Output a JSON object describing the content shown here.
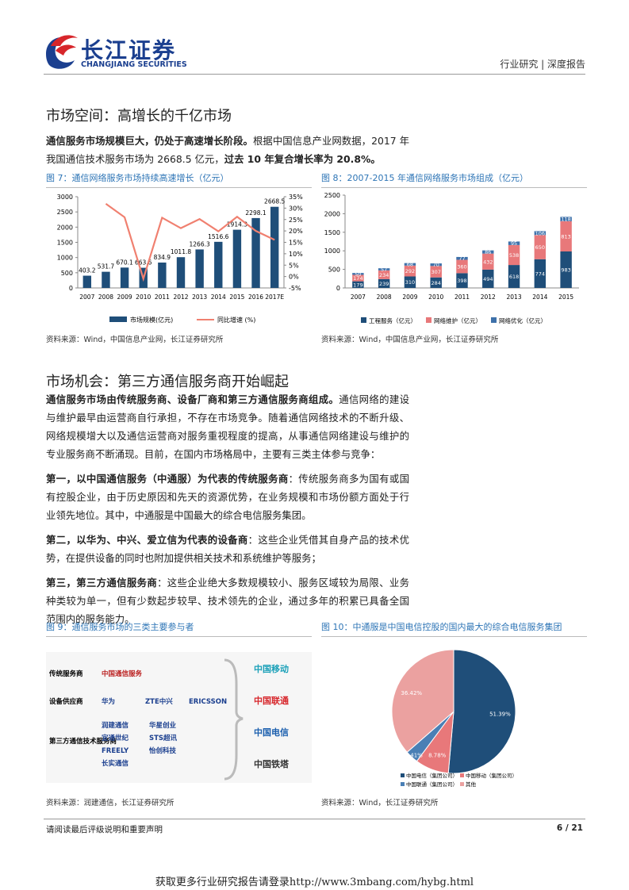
{
  "header": {
    "logo_cn": "长江证券",
    "logo_en": "CHANGJIANG SECURITIES",
    "right": "行业研究 | 深度报告"
  },
  "sections": [
    {
      "title": "市场空间：高增长的千亿市场",
      "paragraphs": [
        {
          "runs": [
            {
              "text": "通信服务市场规模巨大，仍处于高速增长阶段。",
              "bold": true
            },
            {
              "text": "根据中国信息产业网数据，2017 年我国通信技术服务市场为 2668.5 亿元，",
              "bold": false
            },
            {
              "text": "过去 10 年复合增长率为 20.8%。",
              "bold": true
            }
          ]
        }
      ]
    },
    {
      "title": "市场机会：第三方通信服务商开始崛起",
      "paragraphs": [
        {
          "runs": [
            {
              "text": "通信服务市场由传统服务商、设备厂商和第三方通信服务商组成。",
              "bold": true
            },
            {
              "text": "通信网络的建设与维护最早由运营商自行承担，不存在市场竞争。随着通信网络技术的不断升级、网络规模增大以及通信运营商对服务重视程度的提高，从事通信网络建设与维护的专业服务商不断涌现。目前，在国内市场格局中，主要有三类主体参与竞争：",
              "bold": false
            }
          ]
        },
        {
          "runs": [
            {
              "text": "第一，以中国通信服务（中通服）为代表的传统服务商",
              "bold": true
            },
            {
              "text": "：传统服务商多为国有或国有控股企业，由于历史原因和先天的资源优势，在业务规模和市场份额方面处于行业领先地位。其中，中通服是中国最大的综合电信服务集团。",
              "bold": false
            }
          ]
        },
        {
          "runs": [
            {
              "text": "第二，以华为、中兴、爱立信为代表的设备商",
              "bold": true
            },
            {
              "text": "：这些企业凭借其自身产品的技术优势，在提供设备的同时也附加提供相关技术和系统维护等服务；",
              "bold": false
            }
          ]
        },
        {
          "runs": [
            {
              "text": "第三，第三方通信服务商",
              "bold": true
            },
            {
              "text": "：这些企业绝大多数规模较小、服务区域较为局限、业务种类较为单一，但有少数起步较早、技术领先的企业，通过多年的积累已具备全国范围内的服务能力。",
              "bold": false
            }
          ]
        }
      ]
    }
  ],
  "figures": [
    {
      "title": "图 7：通信网络服务市场持续高速增长（亿元）",
      "source": "资料来源：Wind，中国信息产业网，长江证券研究所",
      "chart": {
        "type": "bar_line",
        "categories": [
          "2007",
          "2008",
          "2009",
          "2010",
          "2011",
          "2012",
          "2013",
          "2014",
          "2015",
          "2016",
          "2017E"
        ],
        "series": [
          {
            "name": "市场规模(亿元)",
            "color": "#1f4e79",
            "values": [
              403.2,
              531.7,
              670.1,
              663.6,
              834.9,
              1011.8,
              1266.3,
              1516.6,
              1914.3,
              2298.1,
              2668.5
            ]
          },
          {
            "name": "同比增速 (%)",
            "color": "#f08070",
            "axis": "y2",
            "values": [
              null,
              31.9,
              26.0,
              -1.0,
              25.8,
              21.2,
              25.2,
              19.8,
              26.2,
              20.0,
              16.1
            ]
          }
        ],
        "ylim": [
          0,
          3000
        ],
        "yticks": [
          0,
          500,
          1000,
          1500,
          2000,
          2500,
          3000
        ],
        "y2lim": [
          -5,
          35
        ],
        "y2ticks": [
          {
            "value": -5,
            "label": "-5%"
          },
          {
            "value": 0,
            "label": "0%"
          },
          {
            "value": 5,
            "label": "5%"
          },
          {
            "value": 10,
            "label": "10%"
          },
          {
            "value": 15,
            "label": "15%"
          },
          {
            "value": 20,
            "label": "20%"
          },
          {
            "value": 25,
            "label": "25%"
          },
          {
            "value": 30,
            "label": "30%"
          },
          {
            "value": 35,
            "label": "35%"
          }
        ]
      }
    },
    {
      "title": "图 8：2007-2015 年通信网络服务市场组成（亿元）",
      "source": "资料来源：Wind，中国信息产业网，长江证券研究所",
      "chart": {
        "type": "stacked_bar",
        "categories": [
          "2007",
          "2008",
          "2009",
          "2010",
          "2011",
          "2012",
          "2013",
          "2014",
          "2015"
        ],
        "series": [
          {
            "name": "工程服务（亿元）",
            "color": "#1f4e79",
            "values": [
              179,
              239,
              310,
              284,
              398,
              494,
              618,
              774,
              983
            ]
          },
          {
            "name": "网络维护（亿元）",
            "color": "#e8787a",
            "values": [
              174,
              234,
              292,
              307,
              360,
              432,
              538,
              650,
              813
            ]
          },
          {
            "name": "网络优化（亿元）",
            "color": "#3e71aa",
            "values": [
              50,
              57,
              68,
              70,
              77,
              86,
              95,
              106,
              118
            ]
          }
        ],
        "ylim": [
          0,
          2500
        ],
        "yticks": [
          0,
          500,
          1000,
          1500,
          2000,
          2500
        ]
      }
    },
    {
      "title": "图 9：通信服务市场的三类主要参与者",
      "source": "资料来源：润建通信，长江证券研究所",
      "diagram": {
        "rows": [
          {
            "label": "传统服务商",
            "logos": [
              "中国通信服务"
            ]
          },
          {
            "label": "设备供应商",
            "logos": [
              "华为",
              "ZTE中兴",
              "ERICSSON"
            ]
          },
          {
            "label": "第三方通信技术服务商",
            "logos": [
              "润建通信",
              "华星创业",
              "宜通世纪",
              "STS超讯",
              "FREELY",
              "怡创科技",
              "长实通信"
            ]
          }
        ],
        "operators": [
          "中国移动",
          "中国联通",
          "中国电信",
          "中国铁塔"
        ]
      }
    },
    {
      "title": "图 10：中通服是中国电信控股的国内最大的综合电信服务集团",
      "source": "资料来源：Wind，长江证券研究所",
      "chart": {
        "type": "pie",
        "categories": [
          "中国电信（集团公司）",
          "中国移动（集团公司）",
          "中国联通（集团公司）",
          "其他"
        ],
        "values": [
          51.39,
          8.78,
          3.41,
          36.42
        ],
        "value_labels": [
          "51.39%",
          "8.78%",
          "3.41%",
          "36.42%"
        ],
        "colors": [
          "#1f4e79",
          "#e8787a",
          "#4a7fb5",
          "#eba1a0"
        ]
      }
    }
  ],
  "footer": {
    "note": "请阅读最后评级说明和重要声明",
    "page": "6 / 21"
  },
  "banner": "获取更多行业研究报告请登录http://www.3mbang.com/hybg.html"
}
